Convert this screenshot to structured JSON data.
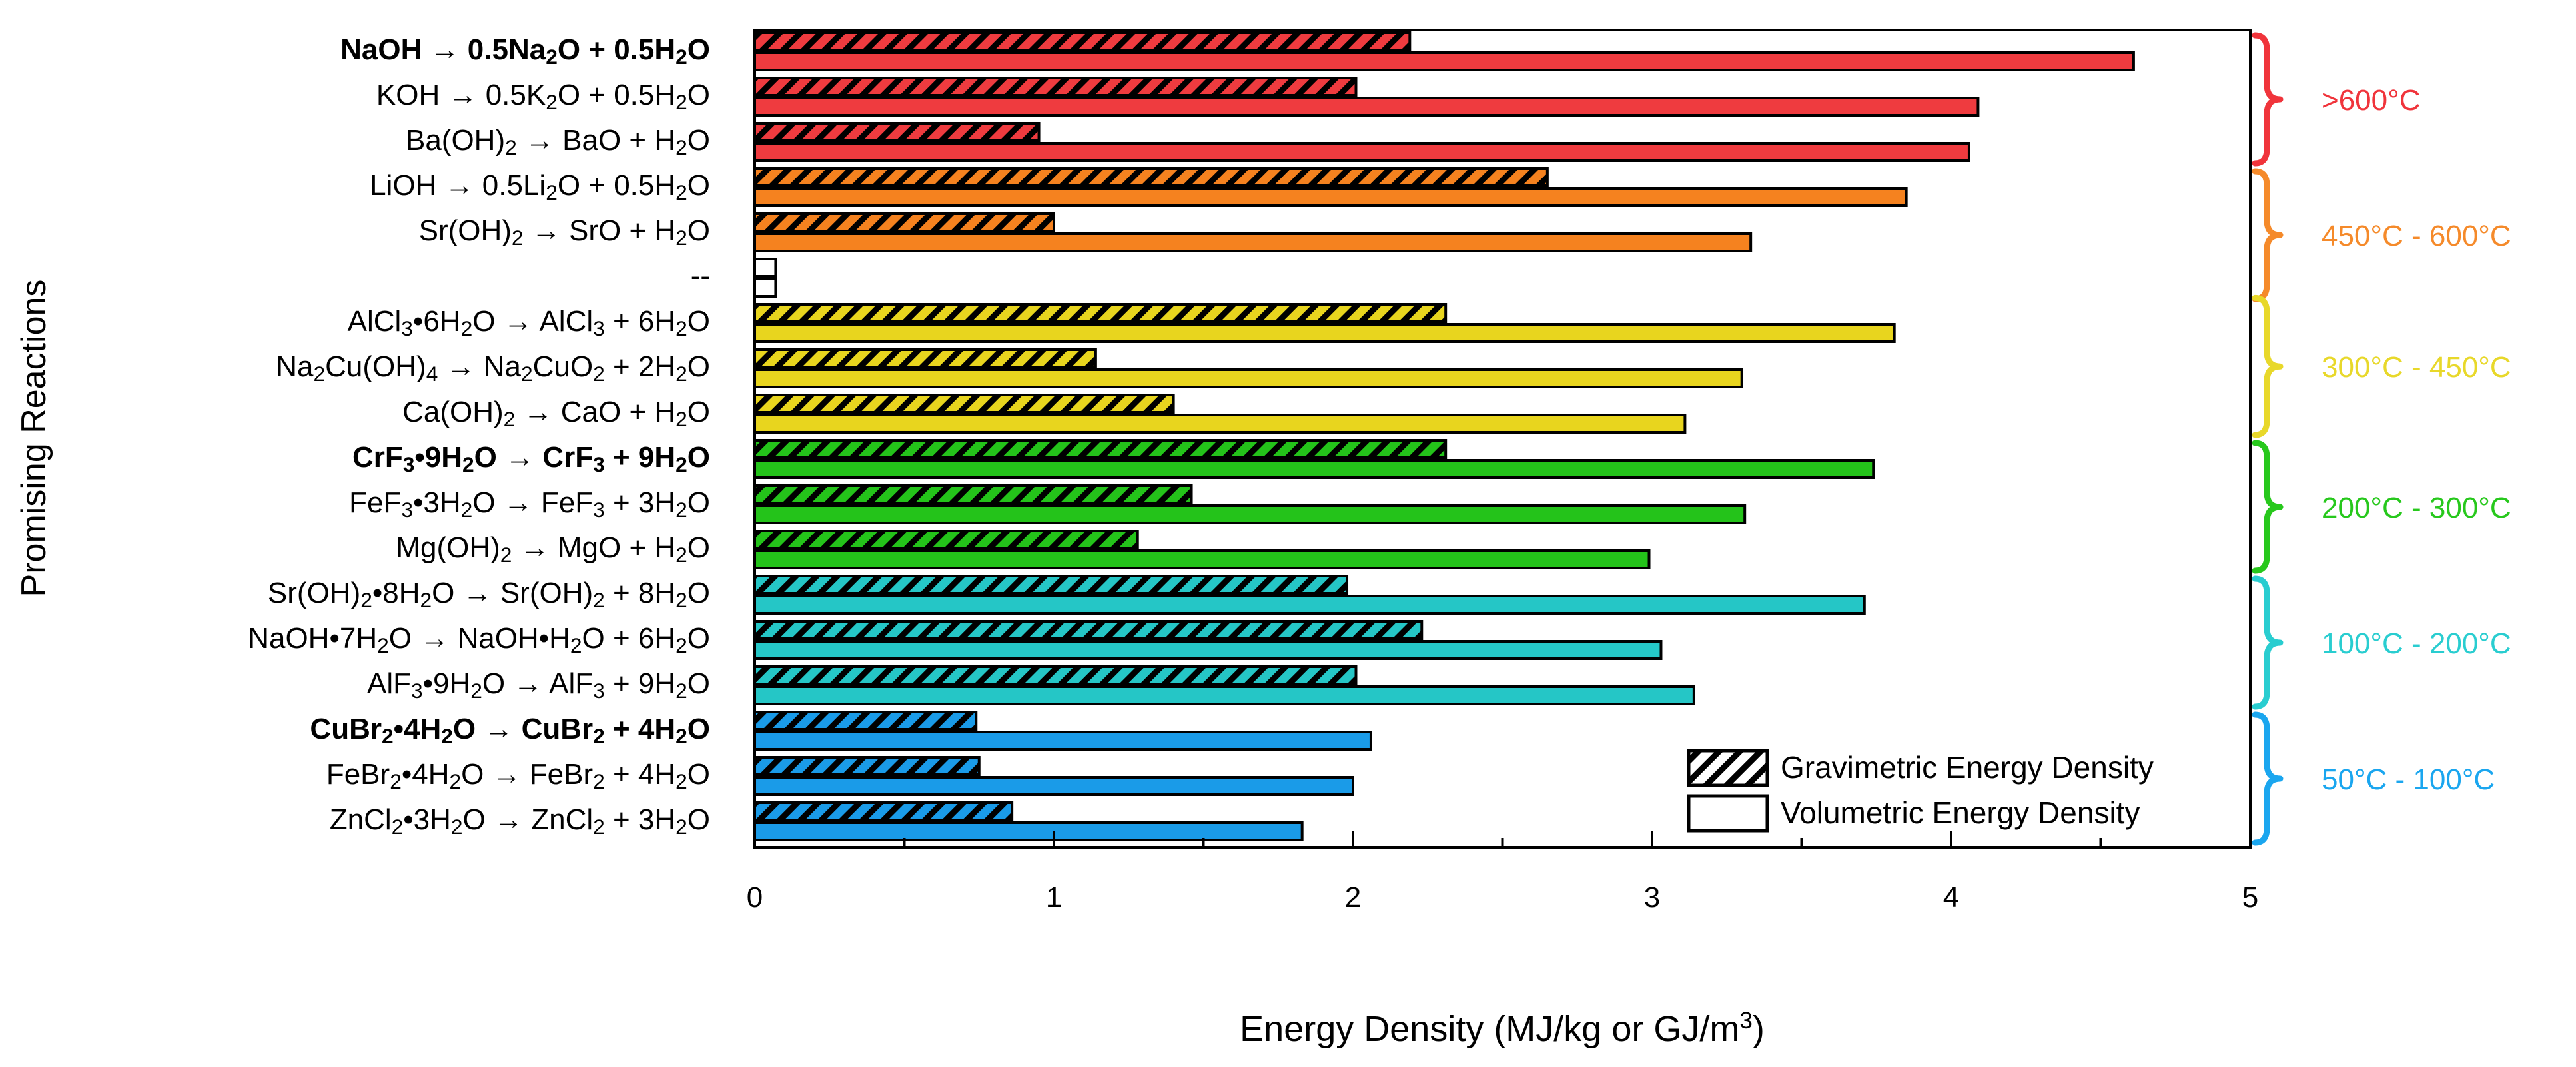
{
  "chart_data": {
    "type": "bar",
    "orientation": "horizontal",
    "title": "",
    "xlabel": "Energy Density (MJ/kg or GJ/m3)",
    "xlabel_parts": {
      "main": "Energy Density (MJ/kg or GJ/m",
      "sup": "3",
      "end": ")"
    },
    "ylabel": "Promising Reactions",
    "xlim": [
      0,
      5
    ],
    "xticks": [
      "0",
      "1",
      "2",
      "3",
      "4",
      "5"
    ],
    "grid": false,
    "legend": {
      "position": "bottom-right",
      "entries": [
        "Gravimetric Energy Density",
        "Volumetric Energy Density"
      ]
    },
    "series_names": [
      "Gravimetric Energy Density",
      "Volumetric Energy Density"
    ],
    "rows": [
      {
        "label": "NaOH → 0.5Na2O + 0.5H2O",
        "bold": true,
        "group": 0,
        "parts": [
          [
            "NaOH → 0.5Na",
            ""
          ],
          [
            "2",
            "sub"
          ],
          [
            "O + 0.5H",
            ""
          ],
          [
            "2",
            "sub"
          ],
          [
            "O",
            ""
          ]
        ],
        "gravimetric": 2.19,
        "volumetric": 4.61
      },
      {
        "label": "KOH → 0.5K2O + 0.5H2O",
        "bold": false,
        "group": 0,
        "parts": [
          [
            "KOH → 0.5K",
            ""
          ],
          [
            "2",
            "sub"
          ],
          [
            "O + 0.5H",
            ""
          ],
          [
            "2",
            "sub"
          ],
          [
            "O",
            ""
          ]
        ],
        "gravimetric": 2.01,
        "volumetric": 4.09
      },
      {
        "label": "Ba(OH)2 → BaO + H2O",
        "bold": false,
        "group": 0,
        "parts": [
          [
            "Ba(OH)",
            ""
          ],
          [
            "2",
            "sub"
          ],
          [
            " → BaO + H",
            ""
          ],
          [
            "2",
            "sub"
          ],
          [
            "O",
            ""
          ]
        ],
        "gravimetric": 0.95,
        "volumetric": 4.06
      },
      {
        "label": "LiOH → 0.5Li2O + 0.5H2O",
        "bold": false,
        "group": 1,
        "parts": [
          [
            "LiOH → 0.5Li",
            ""
          ],
          [
            "2",
            "sub"
          ],
          [
            "O + 0.5H",
            ""
          ],
          [
            "2",
            "sub"
          ],
          [
            "O",
            ""
          ]
        ],
        "gravimetric": 2.65,
        "volumetric": 3.85
      },
      {
        "label": "Sr(OH)2 → SrO + H2O",
        "bold": false,
        "group": 1,
        "parts": [
          [
            "Sr(OH)",
            ""
          ],
          [
            "2",
            "sub"
          ],
          [
            " → SrO + H",
            ""
          ],
          [
            "2",
            "sub"
          ],
          [
            "O",
            ""
          ]
        ],
        "gravimetric": 1.0,
        "volumetric": 3.33
      },
      {
        "label": "--",
        "bold": false,
        "group": -1,
        "spacer": true,
        "parts": [
          [
            "--",
            ""
          ]
        ],
        "gravimetric": 0.07,
        "volumetric": 0.07
      },
      {
        "label": "AlCl3•6H2O → AlCl3 + 6H2O",
        "bold": false,
        "group": 2,
        "parts": [
          [
            "AlCl",
            ""
          ],
          [
            "3",
            "sub"
          ],
          [
            "•6H",
            ""
          ],
          [
            "2",
            "sub"
          ],
          [
            "O → AlCl",
            ""
          ],
          [
            "3",
            "sub"
          ],
          [
            " + 6H",
            ""
          ],
          [
            "2",
            "sub"
          ],
          [
            "O",
            ""
          ]
        ],
        "gravimetric": 2.31,
        "volumetric": 3.81
      },
      {
        "label": "Na2Cu(OH)4 → Na2CuO2 + 2H2O",
        "bold": false,
        "group": 2,
        "parts": [
          [
            "Na",
            ""
          ],
          [
            "2",
            "sub"
          ],
          [
            "Cu(OH)",
            ""
          ],
          [
            "4",
            "sub"
          ],
          [
            " → Na",
            ""
          ],
          [
            "2",
            "sub"
          ],
          [
            "CuO",
            ""
          ],
          [
            "2",
            "sub"
          ],
          [
            " + 2H",
            ""
          ],
          [
            "2",
            "sub"
          ],
          [
            "O",
            ""
          ]
        ],
        "gravimetric": 1.14,
        "volumetric": 3.3
      },
      {
        "label": "Ca(OH)2 → CaO + H2O",
        "bold": false,
        "group": 2,
        "parts": [
          [
            "Ca(OH)",
            ""
          ],
          [
            "2",
            "sub"
          ],
          [
            " → CaO + H",
            ""
          ],
          [
            "2",
            "sub"
          ],
          [
            "O",
            ""
          ]
        ],
        "gravimetric": 1.4,
        "volumetric": 3.11
      },
      {
        "label": "CrF3•9H2O → CrF3 + 9H2O",
        "bold": true,
        "group": 3,
        "parts": [
          [
            "CrF",
            ""
          ],
          [
            "3",
            "sub"
          ],
          [
            "•9H",
            ""
          ],
          [
            "2",
            "sub"
          ],
          [
            "O → CrF",
            ""
          ],
          [
            "3",
            "sub"
          ],
          [
            " + 9H",
            ""
          ],
          [
            "2",
            "sub"
          ],
          [
            "O",
            ""
          ]
        ],
        "gravimetric": 2.31,
        "volumetric": 3.74
      },
      {
        "label": "FeF3•3H2O → FeF3 + 3H2O",
        "bold": false,
        "group": 3,
        "parts": [
          [
            "FeF",
            ""
          ],
          [
            "3",
            "sub"
          ],
          [
            "•3H",
            ""
          ],
          [
            "2",
            "sub"
          ],
          [
            "O → FeF",
            ""
          ],
          [
            "3",
            "sub"
          ],
          [
            " + 3H",
            ""
          ],
          [
            "2",
            "sub"
          ],
          [
            "O",
            ""
          ]
        ],
        "gravimetric": 1.46,
        "volumetric": 3.31
      },
      {
        "label": "Mg(OH)2 → MgO + H2O",
        "bold": false,
        "group": 3,
        "parts": [
          [
            "Mg(OH)",
            ""
          ],
          [
            "2",
            "sub"
          ],
          [
            " → MgO + H",
            ""
          ],
          [
            "2",
            "sub"
          ],
          [
            "O",
            ""
          ]
        ],
        "gravimetric": 1.28,
        "volumetric": 2.99
      },
      {
        "label": "Sr(OH)2•8H2O → Sr(OH)2 + 8H2O",
        "bold": false,
        "group": 4,
        "parts": [
          [
            "Sr(OH)",
            ""
          ],
          [
            "2",
            "sub"
          ],
          [
            "•8H",
            ""
          ],
          [
            "2",
            "sub"
          ],
          [
            "O → Sr(OH)",
            ""
          ],
          [
            "2",
            "sub"
          ],
          [
            " + 8H",
            ""
          ],
          [
            "2",
            "sub"
          ],
          [
            "O",
            ""
          ]
        ],
        "gravimetric": 1.98,
        "volumetric": 3.71
      },
      {
        "label": "NaOH•7H2O → NaOH•H2O + 6H2O",
        "bold": false,
        "group": 4,
        "parts": [
          [
            "NaOH•7H",
            ""
          ],
          [
            "2",
            "sub"
          ],
          [
            "O → NaOH•H",
            ""
          ],
          [
            "2",
            "sub"
          ],
          [
            "O + 6H",
            ""
          ],
          [
            "2",
            "sub"
          ],
          [
            "O",
            ""
          ]
        ],
        "gravimetric": 2.23,
        "volumetric": 3.03
      },
      {
        "label": "AlF3•9H2O → AlF3 + 9H2O",
        "bold": false,
        "group": 4,
        "parts": [
          [
            "AlF",
            ""
          ],
          [
            "3",
            "sub"
          ],
          [
            "•9H",
            ""
          ],
          [
            "2",
            "sub"
          ],
          [
            "O → AlF",
            ""
          ],
          [
            "3",
            "sub"
          ],
          [
            " + 9H",
            ""
          ],
          [
            "2",
            "sub"
          ],
          [
            "O",
            ""
          ]
        ],
        "gravimetric": 2.01,
        "volumetric": 3.14
      },
      {
        "label": "CuBr2•4H2O → CuBr2 + 4H2O",
        "bold": true,
        "group": 5,
        "parts": [
          [
            "CuBr",
            ""
          ],
          [
            "2",
            "sub"
          ],
          [
            "•4H",
            ""
          ],
          [
            "2",
            "sub"
          ],
          [
            "O → CuBr",
            ""
          ],
          [
            "2",
            "sub"
          ],
          [
            " + 4H",
            ""
          ],
          [
            "2",
            "sub"
          ],
          [
            "O",
            ""
          ]
        ],
        "gravimetric": 0.74,
        "volumetric": 2.06
      },
      {
        "label": "FeBr2•4H2O → FeBr2 + 4H2O",
        "bold": false,
        "group": 5,
        "parts": [
          [
            "FeBr",
            ""
          ],
          [
            "2",
            "sub"
          ],
          [
            "•4H",
            ""
          ],
          [
            "2",
            "sub"
          ],
          [
            "O → FeBr",
            ""
          ],
          [
            "2",
            "sub"
          ],
          [
            " + 4H",
            ""
          ],
          [
            "2",
            "sub"
          ],
          [
            "O",
            ""
          ]
        ],
        "gravimetric": 0.75,
        "volumetric": 2.0
      },
      {
        "label": "ZnCl2•3H2O → ZnCl2 + 3H2O",
        "bold": false,
        "group": 5,
        "parts": [
          [
            "ZnCl",
            ""
          ],
          [
            "2",
            "sub"
          ],
          [
            "•3H",
            ""
          ],
          [
            "2",
            "sub"
          ],
          [
            "O → ZnCl",
            ""
          ],
          [
            "2",
            "sub"
          ],
          [
            " + 3H",
            ""
          ],
          [
            "2",
            "sub"
          ],
          [
            "O",
            ""
          ]
        ],
        "gravimetric": 0.86,
        "volumetric": 1.83
      }
    ],
    "temperature_groups": [
      {
        "label": ">600°C",
        "color": "#f0343b",
        "bar_color": "#ef3b3f"
      },
      {
        "label": "450°C - 600°C",
        "color": "#f58a2a",
        "bar_color": "#f5821f"
      },
      {
        "label": "300°C - 450°C",
        "color": "#e8d82a",
        "bar_color": "#e8d51e"
      },
      {
        "label": "200°C - 300°C",
        "color": "#27c81c",
        "bar_color": "#24c31a"
      },
      {
        "label": "100°C - 200°C",
        "color": "#29cdd0",
        "bar_color": "#25c6c6"
      },
      {
        "label": "50°C - 100°C",
        "color": "#1aa6ef",
        "bar_color": "#1a9be8"
      }
    ]
  }
}
